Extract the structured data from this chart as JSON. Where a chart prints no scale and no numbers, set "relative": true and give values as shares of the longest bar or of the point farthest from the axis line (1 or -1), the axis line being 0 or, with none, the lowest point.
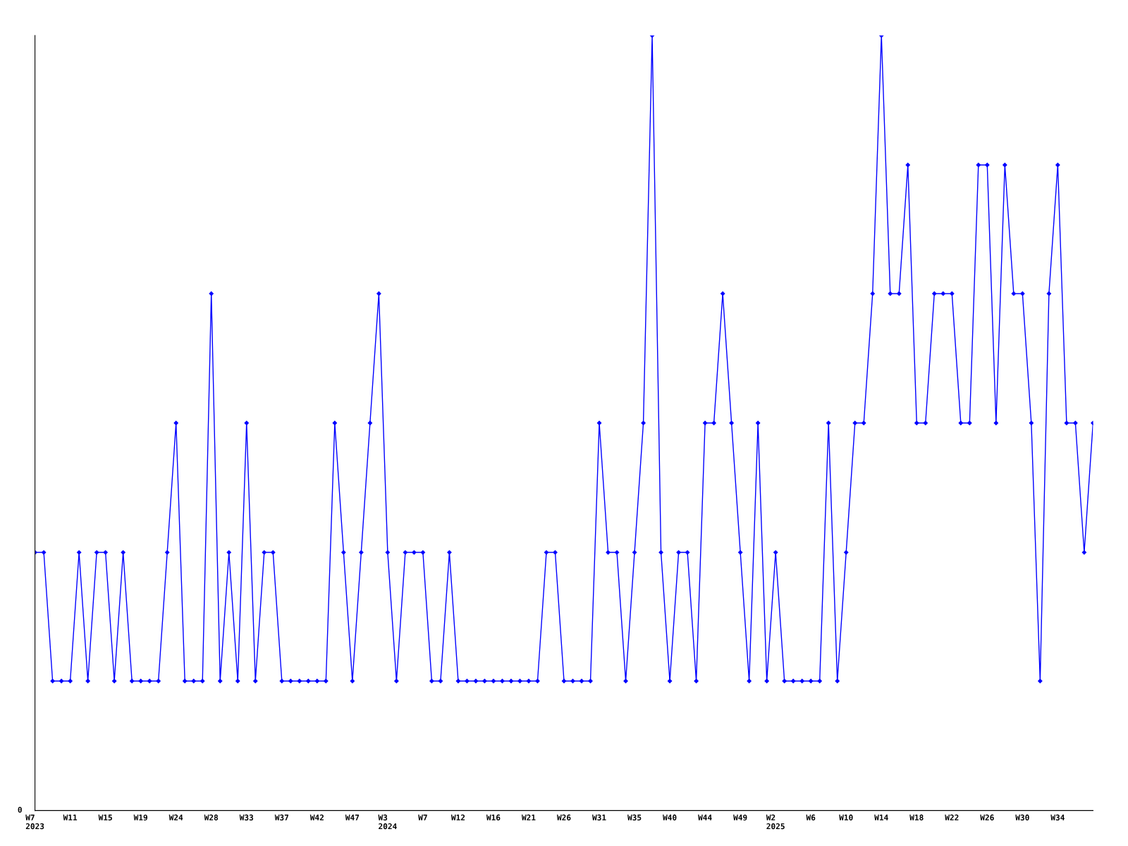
{
  "chart_data": {
    "type": "line",
    "relative": true,
    "categories": [
      "W7\n2023",
      null,
      null,
      null,
      "W11",
      null,
      null,
      null,
      "W15",
      null,
      null,
      null,
      "W19",
      null,
      null,
      null,
      "W24",
      null,
      null,
      null,
      "W28",
      null,
      null,
      null,
      "W33",
      null,
      null,
      null,
      "W37",
      null,
      null,
      null,
      "W42",
      null,
      null,
      null,
      "W47",
      null,
      null,
      null,
      "W3\n2024",
      null,
      null,
      null,
      "W7",
      null,
      null,
      null,
      "W12",
      null,
      null,
      null,
      "W16",
      null,
      null,
      null,
      "W21",
      null,
      null,
      null,
      "W26",
      null,
      null,
      null,
      "W31",
      null,
      null,
      null,
      "W35",
      null,
      null,
      null,
      "W40",
      null,
      null,
      null,
      "W44",
      null,
      null,
      null,
      "W49",
      null,
      null,
      null,
      "W2\n2025",
      null,
      null,
      null,
      "W6",
      null,
      null,
      null,
      "W10",
      null,
      null,
      null,
      "W14",
      null,
      null,
      null,
      "W18",
      null,
      null,
      null,
      "W22",
      null,
      null,
      null,
      "W26",
      null,
      null,
      null,
      "W30",
      null,
      null,
      null,
      "W34",
      null,
      null,
      null,
      null
    ],
    "series": [
      {
        "color": "#0000ff",
        "values": [
          0.333,
          0.333,
          0.167,
          0.167,
          0.167,
          0.333,
          0.167,
          0.333,
          0.333,
          0.167,
          0.333,
          0.167,
          0.167,
          0.167,
          0.167,
          0.333,
          0.5,
          0.167,
          0.167,
          0.167,
          0.667,
          0.167,
          0.333,
          0.167,
          0.5,
          0.167,
          0.333,
          0.333,
          0.167,
          0.167,
          0.167,
          0.167,
          0.167,
          0.167,
          0.5,
          0.333,
          0.167,
          0.333,
          0.5,
          0.667,
          0.333,
          0.167,
          0.333,
          0.333,
          0.333,
          0.167,
          0.167,
          0.333,
          0.167,
          0.167,
          0.167,
          0.167,
          0.167,
          0.167,
          0.167,
          0.167,
          0.167,
          0.167,
          0.333,
          0.333,
          0.167,
          0.167,
          0.167,
          0.167,
          0.5,
          0.333,
          0.333,
          0.167,
          0.333,
          0.5,
          1,
          0.333,
          0.167,
          0.333,
          0.333,
          0.167,
          0.5,
          0.5,
          0.667,
          0.5,
          0.333,
          0.167,
          0.5,
          0.167,
          0.333,
          0.167,
          0.167,
          0.167,
          0.167,
          0.167,
          0.5,
          0.167,
          0.333,
          0.5,
          0.5,
          0.667,
          1,
          0.667,
          0.667,
          0.833,
          0.5,
          0.5,
          0.667,
          0.667,
          0.667,
          0.5,
          0.5,
          0.833,
          0.833,
          0.5,
          0.833,
          0.667,
          0.667,
          0.5,
          0.167,
          0.667,
          0.833,
          0.5,
          0.5,
          0.333,
          0.5
        ]
      }
    ],
    "annotations": [
      "0"
    ],
    "marker": "diamond",
    "line_style": "solid",
    "grid": false,
    "legend": false
  }
}
